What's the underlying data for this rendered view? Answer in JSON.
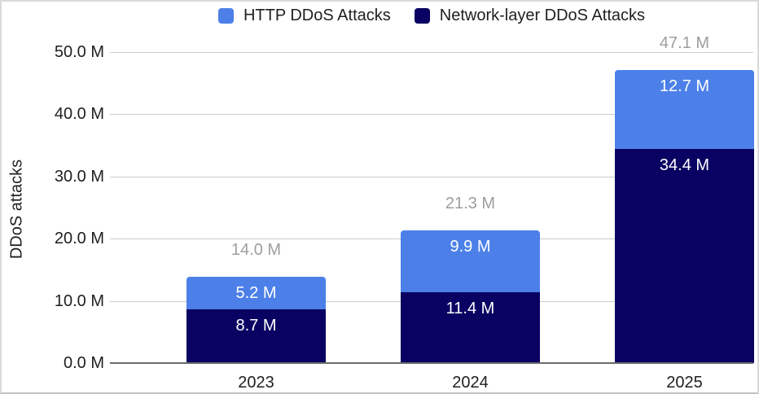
{
  "legend": {
    "items": [
      {
        "label": "HTTP DDoS Attacks",
        "color": "#4C80E8"
      },
      {
        "label": "Network-layer DDoS Attacks",
        "color": "#0A0262"
      }
    ]
  },
  "chart_data": {
    "type": "bar",
    "stacked": true,
    "title": "",
    "categories": [
      "2023",
      "2024",
      "2025"
    ],
    "series": [
      {
        "name": "HTTP DDoS Attacks",
        "color": "#4C80E8",
        "values": [
          5.2,
          9.9,
          12.7
        ],
        "labels": [
          "5.2 M",
          "9.9 M",
          "12.7 M"
        ]
      },
      {
        "name": "Network-layer DDoS Attacks",
        "color": "#0A0262",
        "values": [
          8.7,
          11.4,
          34.4
        ],
        "labels": [
          "8.7 M",
          "11.4 M",
          "34.4 M"
        ]
      }
    ],
    "total_labels": [
      "14.0 M",
      "21.3 M",
      "47.1 M"
    ],
    "ylabel": "DDoS attacks",
    "xlabel": "",
    "ylim": [
      0,
      50
    ],
    "y_ticks": [
      {
        "value": 50,
        "label": "50.0 M"
      },
      {
        "value": 40,
        "label": "40.0 M"
      },
      {
        "value": 30,
        "label": "30.0 M"
      },
      {
        "value": 20,
        "label": "20.0 M"
      },
      {
        "value": 10,
        "label": "10.0 M"
      },
      {
        "value": 0,
        "label": "0.0 M"
      }
    ],
    "unit": "M",
    "legend_position": "top",
    "grid": true,
    "colors": {
      "http_series": "#4C80E8",
      "network_series": "#0A0262",
      "gridline": "#CBCBCB",
      "axis_baseline": "#6B6B6B",
      "total_label_text": "#9E9E9E",
      "axis_text": "#1F1F1F",
      "segment_label_text": "#FFFFFF",
      "background": "#FFFFFF"
    }
  }
}
